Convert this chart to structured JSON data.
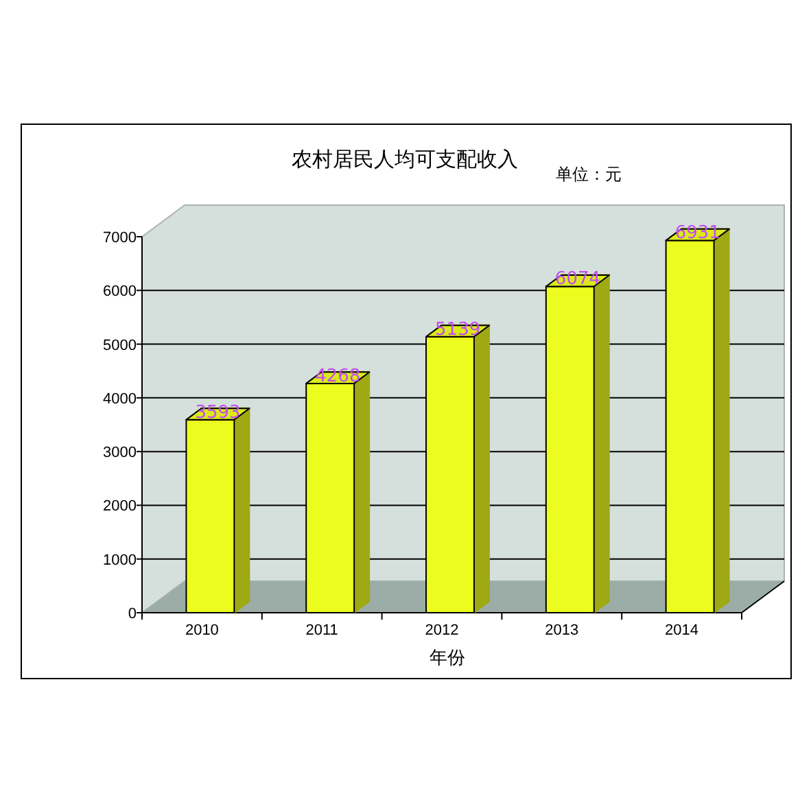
{
  "chart_data": {
    "type": "bar",
    "title": "农村居民人均可支配收入",
    "subtitle": "单位：元",
    "xlabel": "年份",
    "categories": [
      "2010",
      "2011",
      "2012",
      "2013",
      "2014"
    ],
    "values": [
      3593,
      4268,
      5139,
      6074,
      6931
    ],
    "color": "#ecfc1e",
    "data_labels": true,
    "ylim": [
      0,
      7000
    ],
    "yticks": [
      0,
      1000,
      2000,
      3000,
      4000,
      5000,
      6000,
      7000
    ],
    "grid": "y"
  }
}
